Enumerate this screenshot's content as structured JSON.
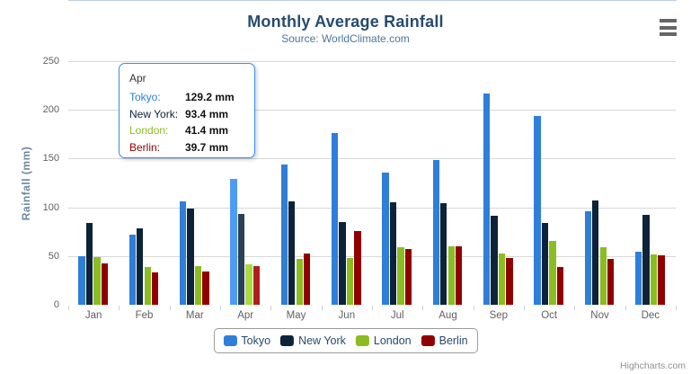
{
  "chart_data": {
    "type": "bar",
    "title": "Monthly Average Rainfall",
    "subtitle": "Source: WorldClimate.com",
    "ylabel": "Rainfall (mm)",
    "ylim": [
      0,
      250
    ],
    "ytick_step": 50,
    "grid": true,
    "legend_position": "bottom-center",
    "hovered_category": "Apr",
    "categories": [
      "Jan",
      "Feb",
      "Mar",
      "Apr",
      "May",
      "Jun",
      "Jul",
      "Aug",
      "Sep",
      "Oct",
      "Nov",
      "Dec"
    ],
    "series": [
      {
        "name": "Tokyo",
        "color": "#2f7ed8",
        "hover_color": "#4e9bf4",
        "values": [
          49.9,
          71.5,
          106.4,
          129.2,
          144.0,
          176.0,
          135.6,
          148.5,
          216.4,
          194.1,
          95.6,
          54.4
        ]
      },
      {
        "name": "New York",
        "color": "#0d233a",
        "hover_color": "#2b4158",
        "values": [
          83.6,
          78.8,
          98.5,
          93.4,
          106.0,
          84.5,
          105.0,
          104.3,
          91.2,
          83.5,
          106.6,
          92.3
        ]
      },
      {
        "name": "London",
        "color": "#8bbc21",
        "hover_color": "#a9da3f",
        "values": [
          48.9,
          38.8,
          39.3,
          41.4,
          47.0,
          48.3,
          59.0,
          59.6,
          52.4,
          65.2,
          59.3,
          51.2
        ]
      },
      {
        "name": "Berlin",
        "color": "#910000",
        "hover_color": "#af1e1e",
        "values": [
          42.4,
          33.2,
          34.5,
          39.7,
          52.6,
          75.5,
          57.4,
          60.4,
          47.6,
          39.1,
          46.8,
          51.1
        ]
      }
    ]
  },
  "tooltip": {
    "header": "Apr",
    "rows": [
      {
        "name": "Tokyo",
        "value": "129.2 mm"
      },
      {
        "name": "New York",
        "value": "93.4 mm"
      },
      {
        "name": "London",
        "value": "41.4 mm"
      },
      {
        "name": "Berlin",
        "value": "39.7 mm"
      }
    ]
  },
  "credits": {
    "label": "Highcharts.com"
  },
  "colors": {
    "title": "#274b6d",
    "subtitle": "#4d759e",
    "axis_labels": "#606060",
    "axis_line": "#c0d0e0",
    "gridline": "#d8d8d8",
    "tooltip_border": "#3b8ce8"
  }
}
